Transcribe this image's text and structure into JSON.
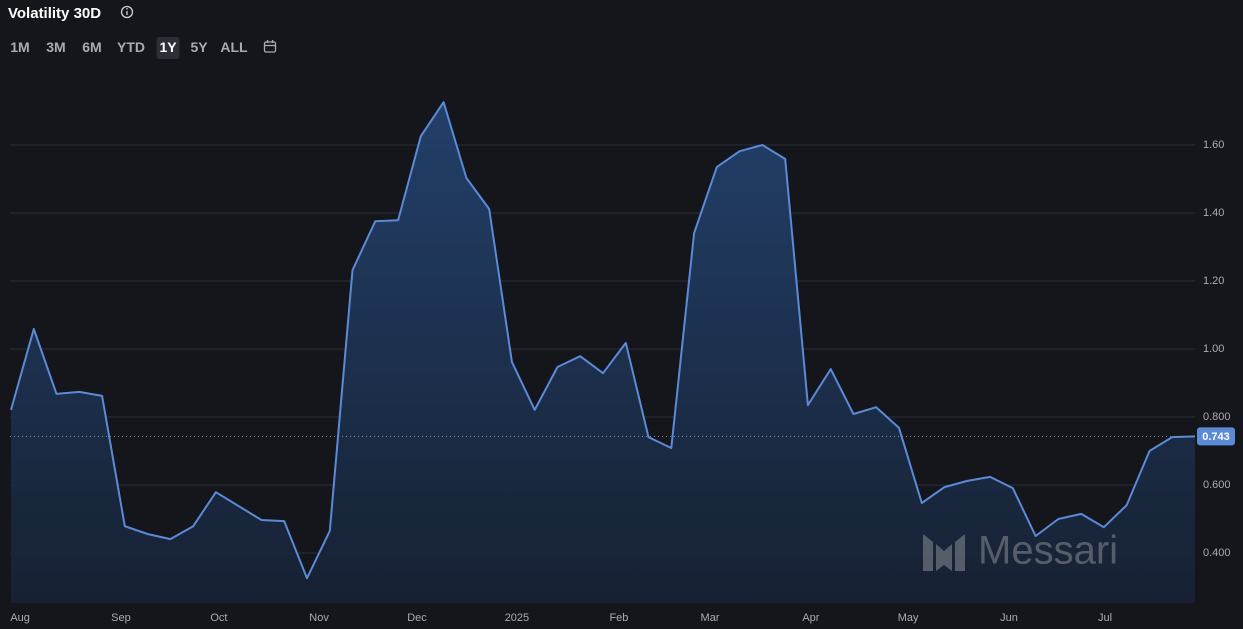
{
  "header": {
    "title": "Volatility 30D",
    "ranges": [
      "1M",
      "3M",
      "6M",
      "YTD",
      "1Y",
      "5Y",
      "ALL"
    ],
    "selected_range": 4
  },
  "watermark": "Messari",
  "chart_data": {
    "type": "area",
    "x": [
      0,
      1,
      2,
      3,
      4,
      5,
      6,
      7,
      8,
      9,
      10,
      11,
      12,
      13,
      14,
      15,
      16,
      17,
      18,
      19,
      20,
      21,
      22,
      23,
      24,
      25,
      26,
      27,
      28,
      29,
      30,
      31,
      32,
      33,
      34,
      35,
      36,
      37,
      38,
      39,
      40,
      41,
      42,
      43,
      44,
      45,
      46,
      47,
      48,
      49,
      50,
      51,
      52
    ],
    "values": [
      0.821,
      1.059,
      0.868,
      0.874,
      0.862,
      0.479,
      0.456,
      0.441,
      0.479,
      0.579,
      0.538,
      0.497,
      0.494,
      0.326,
      0.465,
      1.232,
      1.376,
      1.379,
      1.626,
      1.726,
      1.503,
      1.412,
      0.962,
      0.821,
      0.947,
      0.979,
      0.929,
      1.018,
      0.741,
      0.709,
      1.341,
      1.535,
      1.582,
      1.6,
      1.559,
      0.835,
      0.941,
      0.809,
      0.829,
      0.768,
      0.547,
      0.594,
      0.612,
      0.624,
      0.591,
      0.45,
      0.5,
      0.515,
      0.476,
      0.541,
      0.7,
      0.741,
      0.743
    ],
    "xlim": [
      0,
      52
    ],
    "xticks": [
      {
        "value": 0.4,
        "label": "Aug"
      },
      {
        "value": 4.83,
        "label": "Sep"
      },
      {
        "value": 9.13,
        "label": "Oct"
      },
      {
        "value": 13.53,
        "label": "Nov"
      },
      {
        "value": 17.83,
        "label": "Dec"
      },
      {
        "value": 22.22,
        "label": "2025"
      },
      {
        "value": 26.7,
        "label": "Feb"
      },
      {
        "value": 30.7,
        "label": "Mar"
      },
      {
        "value": 35.13,
        "label": "Apr"
      },
      {
        "value": 39.4,
        "label": "May"
      },
      {
        "value": 43.83,
        "label": "Jun"
      },
      {
        "value": 48.05,
        "label": "Jul"
      }
    ],
    "ylim": [
      0.253,
      1.806
    ],
    "yticks": [
      {
        "value": 0.4,
        "label": "0.400"
      },
      {
        "value": 0.6,
        "label": "0.600"
      },
      {
        "value": 0.8,
        "label": "0.800"
      },
      {
        "value": 1.0,
        "label": "1.00"
      },
      {
        "value": 1.2,
        "label": "1.20"
      },
      {
        "value": 1.4,
        "label": "1.40"
      },
      {
        "value": 1.6,
        "label": "1.60"
      }
    ],
    "color": "#5b8ad6",
    "grid": true
  }
}
